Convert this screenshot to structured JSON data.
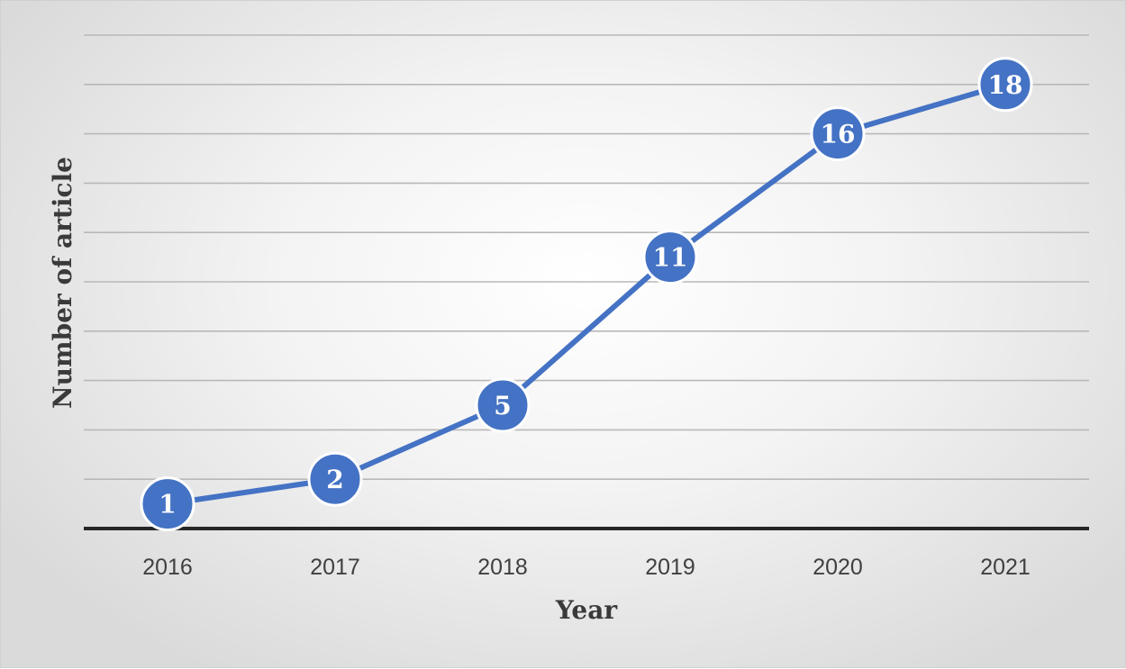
{
  "chart_data": {
    "type": "line",
    "xlabel": "Year",
    "ylabel": "Number of article",
    "categories": [
      "2016",
      "2017",
      "2018",
      "2019",
      "2020",
      "2021"
    ],
    "series": [
      {
        "values": [
          1,
          2,
          5,
          11,
          16,
          18
        ]
      }
    ],
    "ylim": [
      0,
      20
    ],
    "grid": true,
    "y_tick_labels_shown": false,
    "data_labels": true,
    "colors": {
      "series": "#4472c4",
      "baseline": "#262626",
      "grid": "#b8b8b8"
    }
  }
}
